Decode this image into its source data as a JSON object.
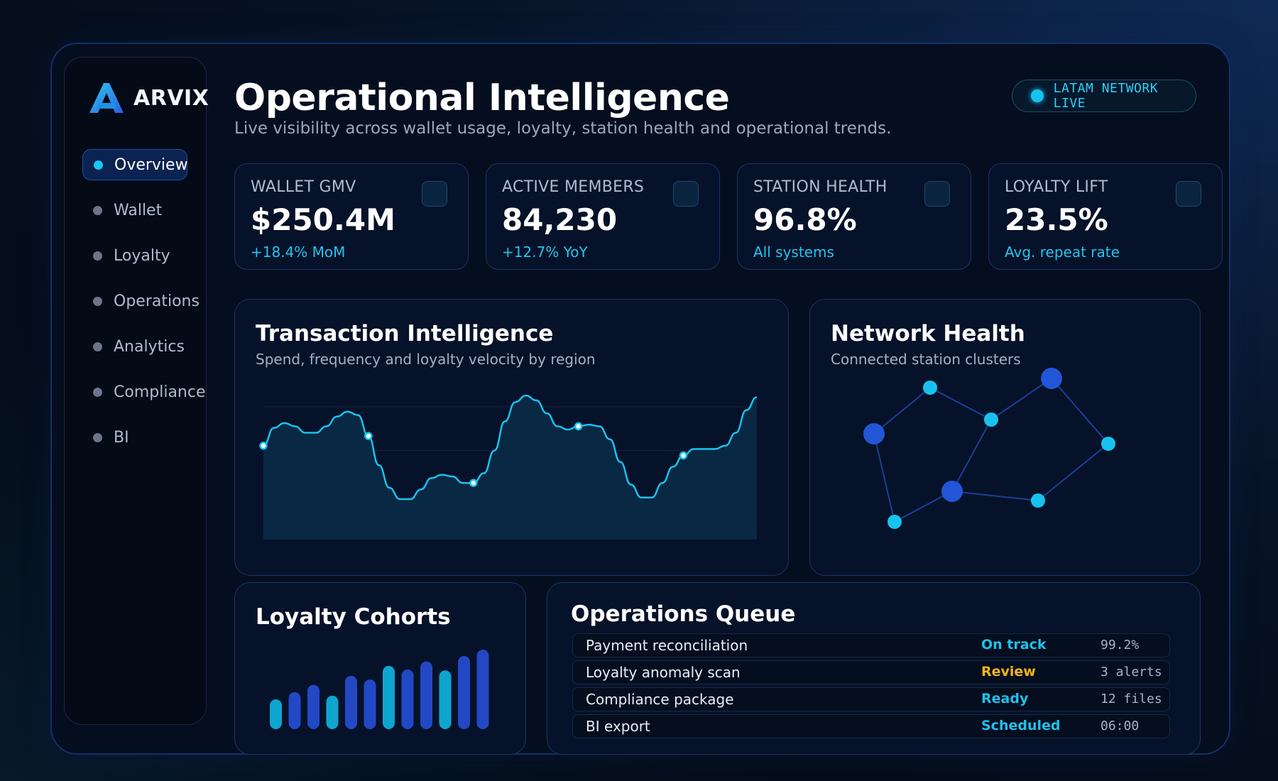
{
  "brand": {
    "name": "ARVIX"
  },
  "sidebar": {
    "items": [
      {
        "label": "Overview",
        "active": true
      },
      {
        "label": "Wallet",
        "active": false
      },
      {
        "label": "Loyalty",
        "active": false
      },
      {
        "label": "Operations",
        "active": false
      },
      {
        "label": "Analytics",
        "active": false
      },
      {
        "label": "Compliance",
        "active": false
      },
      {
        "label": "BI",
        "active": false
      }
    ]
  },
  "header": {
    "title": "Operational Intelligence",
    "subtitle": "Live visibility across wallet usage, loyalty, station health and operational trends.",
    "status_pill": "LATAM NETWORK LIVE"
  },
  "kpis": [
    {
      "label": "WALLET GMV",
      "value": "$250.4M",
      "delta": "+18.4% MoM"
    },
    {
      "label": "ACTIVE MEMBERS",
      "value": "84,230",
      "delta": "+12.7% YoY"
    },
    {
      "label": "STATION HEALTH",
      "value": "96.8%",
      "delta": "All systems"
    },
    {
      "label": "LOYALTY LIFT",
      "value": "23.5%",
      "delta": "Avg. repeat rate"
    }
  ],
  "transaction_card": {
    "title": "Transaction Intelligence",
    "subtitle": "Spend, frequency and loyalty velocity by region"
  },
  "network_card": {
    "title": "Network Health",
    "subtitle": "Connected station clusters"
  },
  "cohorts_card": {
    "title": "Loyalty Cohorts"
  },
  "operations_queue": {
    "title": "Operations Queue",
    "rows": [
      {
        "name": "Payment reconciliation",
        "status": "On track",
        "meta": "99.2%"
      },
      {
        "name": "Loyalty anomaly scan",
        "status": "Review",
        "meta": "3 alerts"
      },
      {
        "name": "Compliance package",
        "status": "Ready",
        "meta": "12 files"
      },
      {
        "name": "BI export",
        "status": "Scheduled",
        "meta": "06:00"
      }
    ]
  },
  "colors": {
    "accent": "#19c6ee",
    "accent_blue": "#2356d6",
    "status_ok": "#1fc1ec",
    "status_review": "#f2b41d",
    "card_border": "#1a3466"
  },
  "chart_data": [
    {
      "type": "area",
      "x": [
        0,
        1,
        2,
        3,
        4,
        5,
        6,
        7,
        8,
        9,
        10,
        11,
        12,
        13,
        14,
        15,
        16,
        17,
        18,
        19,
        20,
        21,
        22,
        23,
        24,
        25,
        26,
        27,
        28,
        29,
        30,
        31,
        32,
        33,
        34,
        35,
        36,
        37,
        38,
        39,
        40,
        41,
        42,
        43,
        44,
        45,
        46,
        47
      ],
      "values": [
        58,
        69,
        72,
        70,
        66,
        66,
        70,
        76,
        79,
        77,
        64,
        46,
        32,
        25,
        25,
        31,
        38,
        40,
        39,
        35,
        35,
        41,
        55,
        73,
        85,
        89,
        86,
        78,
        70,
        68,
        70,
        71,
        70,
        62,
        48,
        34,
        26,
        26,
        35,
        45,
        52,
        56,
        56,
        56,
        58,
        66,
        80,
        88
      ],
      "markers": [
        0,
        10,
        20,
        30,
        40
      ],
      "ylim": [
        0,
        100
      ],
      "grid": true
    },
    {
      "type": "bar",
      "values": [
        33,
        41,
        49,
        37,
        59,
        55,
        70,
        66,
        75,
        65,
        81,
        88
      ],
      "colors": [
        "cyan",
        "blue",
        "blue",
        "cyan",
        "blue",
        "blue",
        "cyan",
        "blue",
        "blue",
        "cyan",
        "blue",
        "blue"
      ]
    }
  ],
  "network_graph": {
    "nodes": [
      {
        "id": "n1",
        "kind": "hub"
      },
      {
        "id": "n2",
        "kind": "node"
      },
      {
        "id": "n3",
        "kind": "node"
      },
      {
        "id": "n4",
        "kind": "hub"
      },
      {
        "id": "n5",
        "kind": "node"
      },
      {
        "id": "n6",
        "kind": "node"
      },
      {
        "id": "n7",
        "kind": "hub"
      },
      {
        "id": "n8",
        "kind": "node"
      }
    ],
    "edges": [
      [
        "n1",
        "n2"
      ],
      [
        "n2",
        "n3"
      ],
      [
        "n3",
        "n4"
      ],
      [
        "n4",
        "n5"
      ],
      [
        "n5",
        "n6"
      ],
      [
        "n6",
        "n7"
      ],
      [
        "n7",
        "n3"
      ],
      [
        "n7",
        "n8"
      ],
      [
        "n8",
        "n1"
      ]
    ]
  }
}
